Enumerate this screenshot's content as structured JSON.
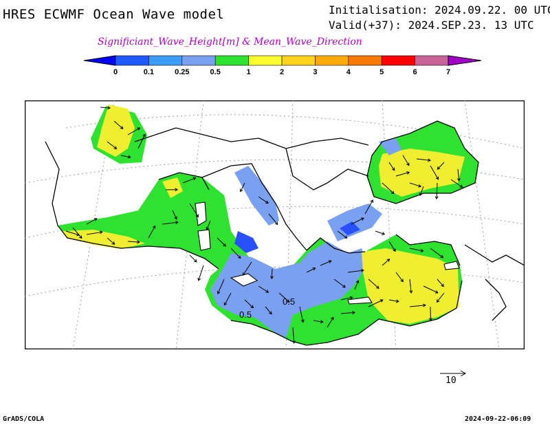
{
  "header": {
    "model_title": "HRES ECWMF Ocean Wave model",
    "initialisation": "Initialisation: 2024.09.22. 00 UTC",
    "valid": "Valid(+37): 2024.SEP.23. 13 UTC",
    "parameter_title": "Significiant_Wave_Height[m] & Mean_Wave_Direction"
  },
  "legend": {
    "levels": [
      "0",
      "0.1",
      "0.25",
      "0.5",
      "1",
      "2",
      "3",
      "4",
      "5",
      "6",
      "7"
    ],
    "colors": [
      "#0000ff",
      "#1e5aff",
      "#3c9bff",
      "#7aa0f0",
      "#2fe22f",
      "#ffff30",
      "#ffd21e",
      "#ffaa00",
      "#ff7800",
      "#ff0000",
      "#c86496",
      "#a000c8"
    ],
    "below_color": "#0000ff",
    "above_color": "#a000c8"
  },
  "map": {
    "region": "Mediterranean and Black Sea",
    "land_color": "#ffffff",
    "coast_color": "#000000",
    "grid_style": "dotted",
    "contour_labels": [
      "0.5",
      "0.5"
    ]
  },
  "vector_scale": {
    "label": "10"
  },
  "footer": {
    "credit": "GrADS/COLA",
    "timestamp": "2024-09-22-06:09"
  }
}
